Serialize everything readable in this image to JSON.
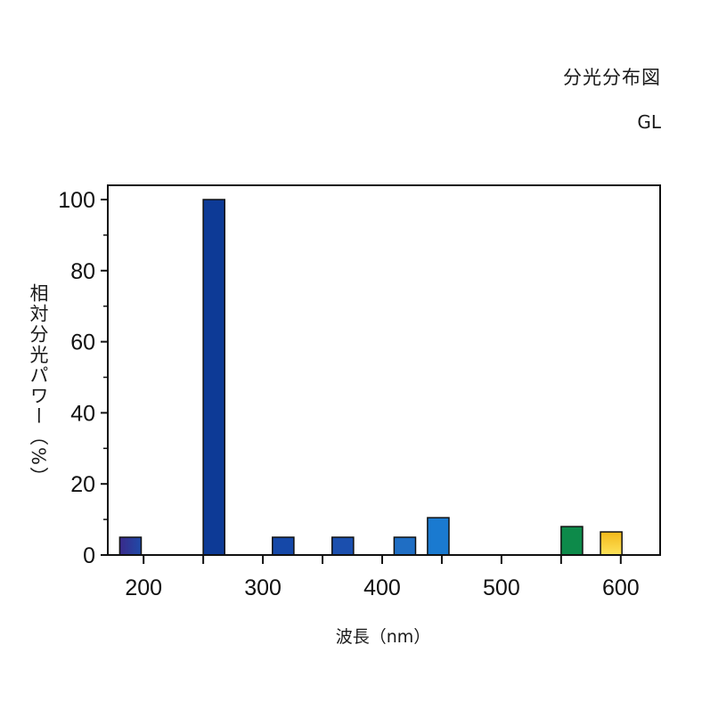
{
  "header": {
    "title": "分光分布図",
    "subtitle": "GL"
  },
  "chart_data": {
    "type": "bar",
    "title": "分光分布図",
    "subtitle": "GL",
    "xlabel": "波長（nm）",
    "ylabel": "相対分光パワー（%）",
    "xlim": [
      170,
      633
    ],
    "ylim": [
      0,
      105
    ],
    "x_ticks": [
      200,
      300,
      400,
      500,
      600
    ],
    "y_ticks": [
      0,
      20,
      40,
      60,
      80,
      100
    ],
    "bars": [
      {
        "x": 180,
        "width": 18,
        "value": 5,
        "color": "#1b3a8c"
      },
      {
        "x": 250,
        "width": 18,
        "value": 100,
        "color": "#0d3a96"
      },
      {
        "x": 308,
        "width": 18,
        "value": 5,
        "color": "#1548a8"
      },
      {
        "x": 358,
        "width": 18,
        "value": 5,
        "color": "#1b4fae"
      },
      {
        "x": 410,
        "width": 18,
        "value": 5,
        "color": "#1f6ec4"
      },
      {
        "x": 438,
        "width": 18,
        "value": 10.5,
        "color": "#1a7ad0"
      },
      {
        "x": 550,
        "width": 18,
        "value": 8,
        "color": "#0d8a4a"
      },
      {
        "x": 583,
        "width": 18,
        "value": 6.5,
        "color": "#f6c21a"
      }
    ],
    "grid": false,
    "legend": "none"
  }
}
